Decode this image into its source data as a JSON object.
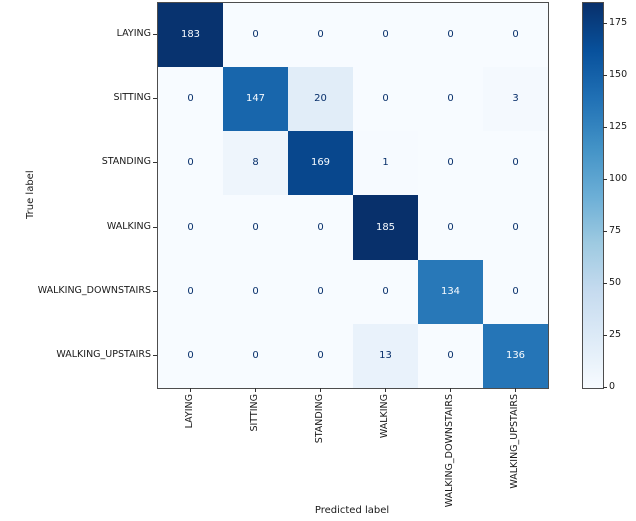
{
  "chart_data": {
    "type": "heatmap",
    "title": "",
    "xlabel": "Predicted label",
    "ylabel": "True label",
    "categories": [
      "LAYING",
      "SITTING",
      "STANDING",
      "WALKING",
      "WALKING_DOWNSTAIRS",
      "WALKING_UPSTAIRS"
    ],
    "matrix": [
      [
        183,
        0,
        0,
        0,
        0,
        0
      ],
      [
        0,
        147,
        20,
        0,
        0,
        3
      ],
      [
        0,
        8,
        169,
        1,
        0,
        0
      ],
      [
        0,
        0,
        0,
        185,
        0,
        0
      ],
      [
        0,
        0,
        0,
        0,
        134,
        0
      ],
      [
        0,
        0,
        0,
        13,
        0,
        136
      ]
    ],
    "vmin": 0,
    "vmax": 185,
    "colormap": "Blues",
    "colormap_anchors": [
      "#f7fbff",
      "#deebf7",
      "#c6dbef",
      "#9ecae1",
      "#6baed6",
      "#4292c6",
      "#2171b5",
      "#08519c",
      "#08306b"
    ],
    "colorbar_ticks": [
      0,
      25,
      50,
      75,
      100,
      125,
      150,
      175
    ],
    "cell_text_light": "#f7fbff",
    "cell_text_dark": "#08306b",
    "grid_on": false,
    "legend_position": "colorbar-right"
  }
}
